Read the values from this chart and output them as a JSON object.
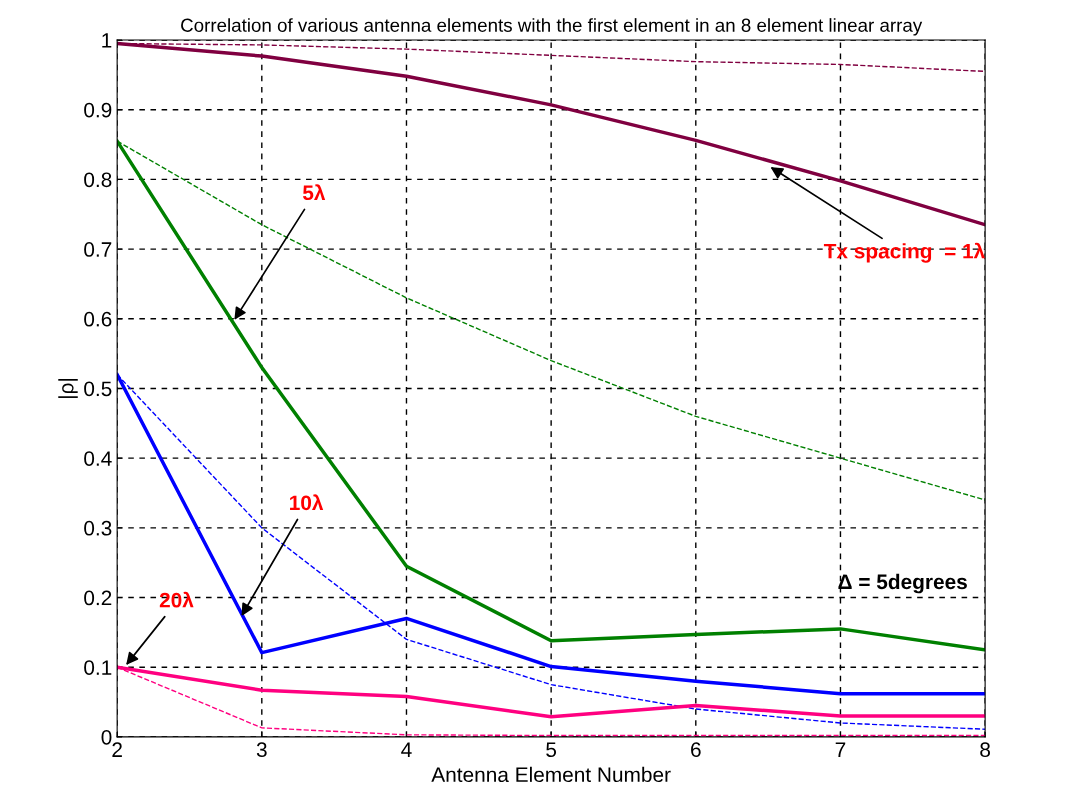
{
  "chart_data": {
    "type": "line",
    "title": "Correlation of various antenna elements with the first element in an 8 element linear array",
    "xlabel": "Antenna Element Number",
    "ylabel": "|ρ|",
    "x": [
      2,
      3,
      4,
      5,
      6,
      7,
      8
    ],
    "series": [
      {
        "color": "#800040",
        "line_style": "solid",
        "values": [
          0.995,
          0.977,
          0.948,
          0.907,
          0.856,
          0.798,
          0.735
        ]
      },
      {
        "color": "#800040",
        "line_style": "dashed",
        "values": [
          0.995,
          0.993,
          0.987,
          0.978,
          0.969,
          0.965,
          0.955
        ]
      },
      {
        "color": "#008000",
        "line_style": "solid",
        "values": [
          0.855,
          0.53,
          0.245,
          0.138,
          0.147,
          0.155,
          0.125
        ]
      },
      {
        "color": "#008000",
        "line_style": "dashed",
        "values": [
          0.855,
          0.735,
          0.63,
          0.54,
          0.46,
          0.4,
          0.34
        ]
      },
      {
        "color": "#0000ff",
        "line_style": "solid",
        "values": [
          0.52,
          0.121,
          0.17,
          0.101,
          0.08,
          0.062,
          0.062
        ]
      },
      {
        "color": "#0000ff",
        "line_style": "dashed",
        "values": [
          0.52,
          0.3,
          0.14,
          0.075,
          0.04,
          0.02,
          0.011
        ]
      },
      {
        "color": "#ff0080",
        "line_style": "solid",
        "values": [
          0.1,
          0.067,
          0.058,
          0.029,
          0.045,
          0.03,
          0.03
        ]
      },
      {
        "color": "#ff0080",
        "line_style": "dashed",
        "values": [
          0.1,
          0.013,
          0.003,
          0.002,
          0.002,
          0.002,
          0.002
        ]
      }
    ],
    "xlim": [
      2,
      8
    ],
    "ylim": [
      0,
      1
    ],
    "xticks": [
      2,
      3,
      4,
      5,
      6,
      7,
      8
    ],
    "yticks": [
      0,
      0.1,
      0.2,
      0.3,
      0.4,
      0.5,
      0.6,
      0.7,
      0.8,
      0.9,
      1
    ],
    "grid": true,
    "annotations": [
      {
        "text": "5λ",
        "x": 2.8,
        "y": 0.595
      },
      {
        "text": "10λ",
        "x": 2.85,
        "y": 0.17
      },
      {
        "text": "20λ",
        "x": 2.05,
        "y": 0.1
      },
      {
        "text": "Tx spacing  = 1λ",
        "x": 6.5,
        "y": 0.82
      },
      "Δ = 5degrees"
    ]
  }
}
